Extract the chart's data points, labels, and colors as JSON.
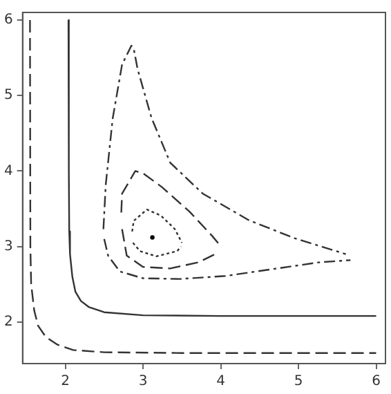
{
  "chart_data": {
    "type": "line",
    "xlim": [
      1.45,
      6.12
    ],
    "ylim": [
      1.45,
      6.1
    ],
    "xticks": [
      2,
      3,
      4,
      5,
      6
    ],
    "yticks": [
      2,
      3,
      4,
      5,
      6
    ],
    "grid": false,
    "legend": false,
    "series": [
      {
        "color": "#333333",
        "line_style": "solid",
        "x": [
          2.04,
          2.045,
          2.05,
          2.06,
          2.09,
          2.13,
          2.2,
          2.3,
          2.5,
          3,
          4,
          6
        ],
        "values": [
          6,
          4,
          3.2,
          2.9,
          2.6,
          2.4,
          2.28,
          2.2,
          2.13,
          2.09,
          2.08,
          2.08
        ]
      },
      {
        "color": "#333333",
        "line_style": "dashed",
        "x": [
          1.545,
          1.55,
          1.56,
          1.6,
          1.65,
          1.75,
          1.9,
          2.1,
          2.5,
          3.5,
          6
        ],
        "values": [
          6,
          3,
          2.5,
          2.15,
          1.95,
          1.8,
          1.7,
          1.63,
          1.6,
          1.59,
          1.59
        ]
      },
      {
        "color": "#333333",
        "line_style": "dashdot",
        "x": [
          2.49,
          2.52,
          2.61,
          2.73,
          2.85,
          2.88,
          2.93,
          3.11,
          3.35,
          3.77,
          4.36,
          4.95,
          5.61
        ],
        "values": [
          3.23,
          3.82,
          4.7,
          5.41,
          5.66,
          5.62,
          5.35,
          4.7,
          4.11,
          3.7,
          3.35,
          3.11,
          2.9
        ]
      },
      {
        "color": "#333333",
        "line_style": "dashdot",
        "x": [
          2.5,
          2.55,
          2.7,
          3.0,
          3.47,
          4.06,
          4.66,
          5.26,
          5.67
        ],
        "values": [
          3.1,
          2.88,
          2.67,
          2.58,
          2.57,
          2.61,
          2.7,
          2.79,
          2.82
        ]
      },
      {
        "color": "#333333",
        "line_style": "dashed",
        "x": [
          2.72,
          2.73,
          2.9,
          3.0,
          3.24,
          3.6,
          3.89,
          4.01
        ],
        "values": [
          3.45,
          3.7,
          4.0,
          3.97,
          3.79,
          3.46,
          3.14,
          2.99
        ]
      },
      {
        "color": "#333333",
        "line_style": "dashed",
        "x": [
          2.73,
          2.79,
          3.0,
          3.35,
          3.71,
          3.95
        ],
        "values": [
          3.23,
          2.88,
          2.73,
          2.71,
          2.79,
          2.91
        ]
      },
      {
        "color": "#333333",
        "line_style": "dotted",
        "x": [
          2.86,
          2.88,
          3.05,
          3.23,
          3.41,
          3.5
        ],
        "values": [
          3.2,
          3.34,
          3.49,
          3.41,
          3.23,
          3.05
        ]
      },
      {
        "color": "#333333",
        "line_style": "dotted",
        "x": [
          2.87,
          2.96,
          3.17,
          3.44,
          3.49
        ],
        "values": [
          3.05,
          2.94,
          2.87,
          2.94,
          3.0
        ]
      },
      {
        "type": "scatter",
        "color": "#000000",
        "marker": "circle",
        "x": [
          3.12
        ],
        "values": [
          3.12
        ]
      }
    ]
  }
}
